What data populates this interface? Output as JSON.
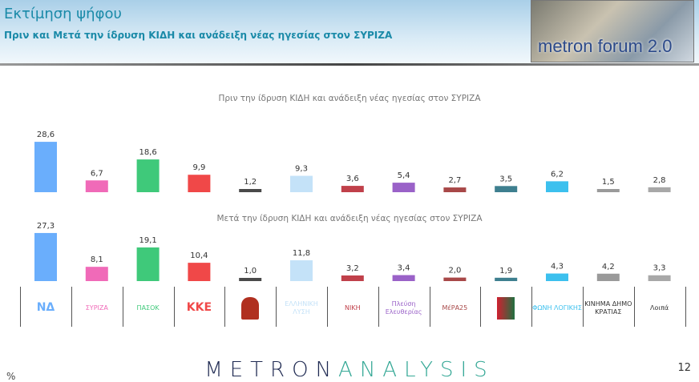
{
  "header": {
    "title": "Εκτίμηση ψήφου",
    "subtitle": "Πριν και Μετά την ίδρυση ΚΙΔΗ και ανάδειξη νέας ηγεσίας στον ΣΥΡΙΖΑ",
    "forum_logo": "metron forum 2.0"
  },
  "footer": {
    "brand_a": "METRON",
    "brand_b": "ANALYSIS",
    "page": "12",
    "unit": "%"
  },
  "parties": [
    {
      "label": "ΝΔ",
      "color": "#6aaefc"
    },
    {
      "label": "ΣΥΡΙΖΑ",
      "color": "#f06ab8"
    },
    {
      "label": "ΠΑΣΟΚ",
      "color": "#3fc97a"
    },
    {
      "label": "ΚΚΕ",
      "color": "#f04848"
    },
    {
      "label": "",
      "color": "#4a4a4a"
    },
    {
      "label": "ΕΛΛΗΝΙΚΗ ΛΥΣΗ",
      "color": "#c4e2f8"
    },
    {
      "label": "ΝΙΚΗ",
      "color": "#c0404a"
    },
    {
      "label": "Πλεύση Ελευθερίας",
      "color": "#9a62c8"
    },
    {
      "label": "ΜέΡΑ25",
      "color": "#a84848"
    },
    {
      "label": "",
      "color": "#3e7f8f"
    },
    {
      "label": "ΦΩΝΗ ΛΟΓΙΚΗΣ",
      "color": "#3cc0ee"
    },
    {
      "label": "ΚΙΝΗΜΑ ΔΗΜΟ ΚΡΑΤΙΑΣ",
      "color": "#9a9a9a"
    },
    {
      "label": "Λοιπά",
      "color": "#a8a8a8"
    }
  ],
  "chart_data": [
    {
      "type": "bar",
      "title": "Πριν την ίδρυση ΚΙΔΗ και ανάδειξη νέας ηγεσίας στον ΣΥΡΙΖΑ",
      "values": [
        28.6,
        6.7,
        18.6,
        9.9,
        1.2,
        9.3,
        3.6,
        5.4,
        2.7,
        3.5,
        6.2,
        1.5,
        2.8
      ],
      "labels": [
        "28,6",
        "6,7",
        "18,6",
        "9,9",
        "1,2",
        "9,3",
        "3,6",
        "5,4",
        "2,7",
        "3,5",
        "6,2",
        "1,5",
        "2,8"
      ]
    },
    {
      "type": "bar",
      "title": "Μετά την ίδρυση ΚΙΔΗ και ανάδειξη νέας ηγεσίας στον ΣΥΡΙΖΑ",
      "values": [
        27.3,
        8.1,
        19.1,
        10.4,
        1.0,
        11.8,
        3.2,
        3.4,
        2.0,
        1.9,
        4.3,
        4.2,
        3.3
      ],
      "labels": [
        "27,3",
        "8,1",
        "19,1",
        "10,4",
        "1,0",
        "11,8",
        "3,2",
        "3,4",
        "2,0",
        "1,9",
        "4,3",
        "4,2",
        "3,3"
      ]
    }
  ]
}
